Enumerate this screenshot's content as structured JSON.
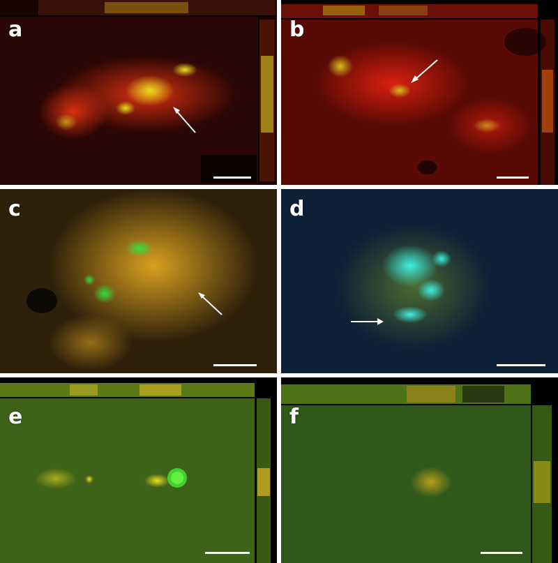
{
  "figure": {
    "panels": [
      {
        "label": "a",
        "dominant_color": "#b01a08",
        "signal_color": "#d8e020"
      },
      {
        "label": "b",
        "dominant_color": "#9c1206",
        "signal_color": "#d8c020"
      },
      {
        "label": "c",
        "dominant_color": "#8a6a1a",
        "signal_color": "#30e040"
      },
      {
        "label": "d",
        "dominant_color": "#0e2a44",
        "signal_color": "#30f0d8"
      },
      {
        "label": "e",
        "dominant_color": "#3a6018",
        "signal_color": "#f0e020"
      },
      {
        "label": "f",
        "dominant_color": "#2e5a14",
        "signal_color": "#d8c020"
      }
    ],
    "icons": [
      "arrow-icon",
      "scale-bar"
    ]
  }
}
